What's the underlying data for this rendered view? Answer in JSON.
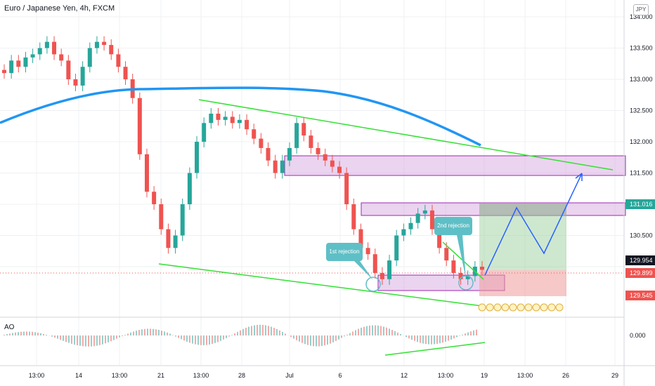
{
  "title": "Euro / Japanese Yen, 4h, FXCM",
  "currency": "JPY",
  "indicator": "AO",
  "callouts": {
    "first": "1st rejection",
    "second": "2nd rejection"
  },
  "colors": {
    "up": "#26a69a",
    "down": "#ef5350",
    "ma": "#2196f3",
    "trend": "#33e033",
    "zone": "#ce93d8",
    "target": "#2962ff",
    "profit": "#a5d6a7",
    "loss": "#ef9a9a",
    "callout": "#5fbfc6"
  },
  "price_labels": [
    {
      "text": "131.016",
      "bg": "#26a69a"
    },
    {
      "text": "129.954",
      "bg": "#131722"
    },
    {
      "text": "129.899",
      "bg": "#ef5350"
    },
    {
      "text": "129.545",
      "bg": "#ef5350"
    }
  ],
  "chart_data": {
    "type": "candlestick",
    "y_ticks": [
      "134.000",
      "133.500",
      "133.000",
      "132.500",
      "132.000",
      "131.500",
      "130.500"
    ],
    "x_ticks": [
      "13:00",
      "14",
      "13:00",
      "21",
      "13:00",
      "28",
      "Jul",
      "6",
      "12",
      "13:00",
      "19",
      "13:00",
      "26",
      "29"
    ],
    "ao_tick": "0.000",
    "ylim": [
      129.2,
      134.1
    ],
    "candles_approx": [
      133.1,
      133.3,
      133.2,
      133.35,
      133.4,
      133.5,
      133.6,
      133.4,
      133.3,
      133.0,
      132.9,
      133.2,
      133.5,
      133.6,
      133.55,
      133.4,
      133.2,
      133.0,
      132.7,
      131.8,
      131.2,
      131.0,
      130.6,
      130.3,
      130.5,
      131.0,
      131.5,
      132.0,
      132.3,
      132.45,
      132.35,
      132.4,
      132.3,
      132.35,
      132.2,
      132.05,
      131.9,
      131.7,
      131.5,
      131.7,
      131.9,
      132.3,
      132.1,
      131.9,
      131.8,
      131.7,
      131.6,
      131.5,
      131.0,
      130.6,
      130.3,
      130.2,
      129.9,
      129.8,
      130.1,
      130.5,
      130.6,
      130.7,
      130.85,
      130.9,
      130.6,
      130.3,
      130.1,
      129.9,
      129.8,
      129.85,
      130.0,
      129.95
    ]
  }
}
